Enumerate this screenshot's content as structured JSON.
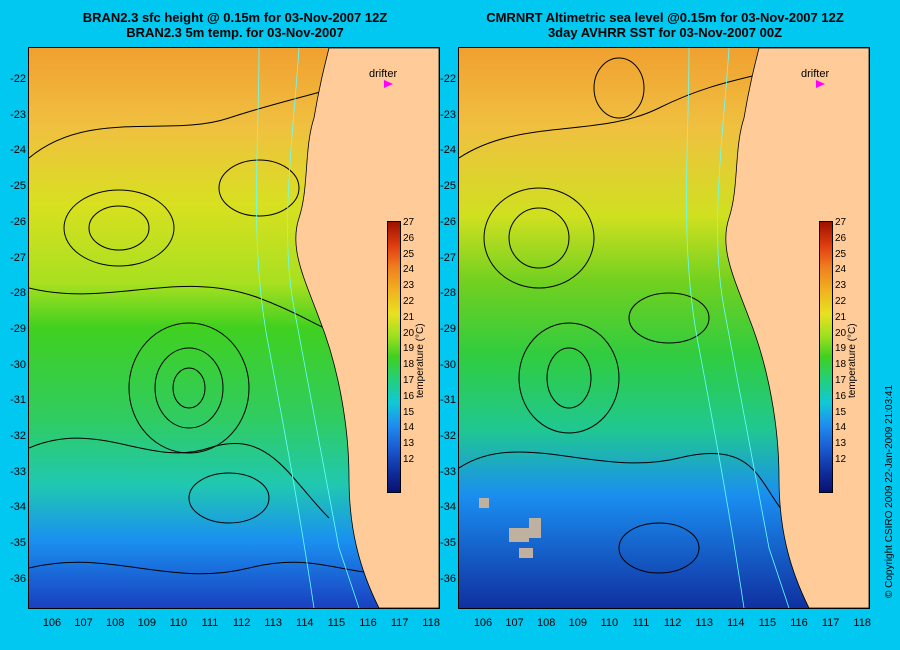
{
  "left_title": {
    "line1": "BRAN2.3 sfc height @ 0.15m for 03-Nov-2007 12Z",
    "line2": "BRAN2.3 5m temp. for 03-Nov-2007"
  },
  "right_title": {
    "line1": "CMRNRT Altimetric sea level  @0.15m  for 03-Nov-2007 12Z",
    "line2": "3day AVHRR SST for 03-Nov-2007 00Z"
  },
  "y_ticks": [
    "-22",
    "-23",
    "-24",
    "-25",
    "-26",
    "-27",
    "-28",
    "-29",
    "-30",
    "-31",
    "-32",
    "-33",
    "-34",
    "-35",
    "-36"
  ],
  "x_ticks": [
    "106",
    "107",
    "108",
    "109",
    "110",
    "111",
    "112",
    "113",
    "114",
    "115",
    "116",
    "117",
    "118"
  ],
  "drifter_label": "drifter",
  "colorbar": {
    "title": "temperature (°C)",
    "ticks": [
      "27",
      "26",
      "25",
      "24",
      "23",
      "22",
      "21",
      "20",
      "19",
      "18",
      "17",
      "16",
      "15",
      "14",
      "13",
      "12"
    ],
    "colors": {
      "cold": "#0a1070",
      "mid": "#40d020",
      "warm": "#a01000"
    }
  },
  "land_color": "#ffcc99",
  "copyright": "© Copyright CSIRO 2009   22-Jan-2009 21:03:41"
}
